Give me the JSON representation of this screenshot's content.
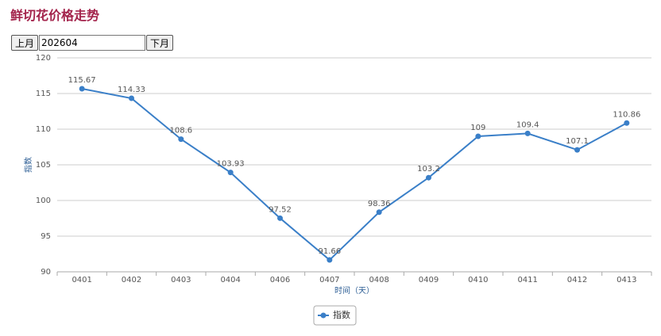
{
  "header": {
    "title": "鲜切花价格走势"
  },
  "controls": {
    "prev": "上月",
    "month": "202604",
    "next": "下月"
  },
  "chart_data": {
    "type": "line",
    "x_label": "时间（天）",
    "y_label": "指数",
    "categories": [
      "0401",
      "0402",
      "0403",
      "0404",
      "0406",
      "0407",
      "0408",
      "0409",
      "0410",
      "0411",
      "0412",
      "0413"
    ],
    "series": [
      {
        "name": "指数",
        "color": "#3a7fc8",
        "values": [
          115.67,
          114.33,
          108.6,
          103.93,
          97.52,
          91.66,
          98.36,
          103.2,
          109,
          109.4,
          107.1,
          110.86
        ]
      }
    ],
    "ylim": [
      90,
      120
    ],
    "yticks": [
      90,
      95,
      100,
      105,
      110,
      115,
      120
    ],
    "grid": true,
    "legend": "bottom"
  }
}
